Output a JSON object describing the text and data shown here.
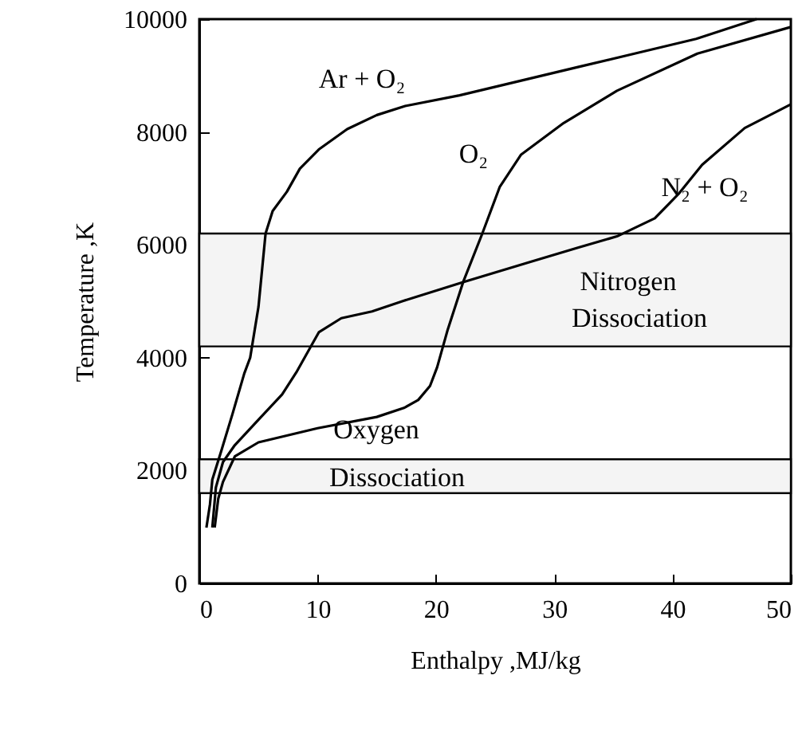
{
  "chart_data": {
    "type": "line",
    "xlabel": "Enthalpy ,MJ/kg",
    "ylabel": "Temperature ,K",
    "xlim": [
      0,
      50
    ],
    "ylim": [
      0,
      10000
    ],
    "xticks": [
      0,
      10,
      20,
      30,
      40,
      50
    ],
    "yticks": [
      0,
      2000,
      4000,
      6000,
      8000,
      10000
    ],
    "grid": false,
    "line_style": "solid",
    "series": [
      {
        "color": "#000000",
        "x": [
          0.6,
          0.9,
          1.1,
          1.8,
          2.8,
          3.8,
          4.3,
          5.0,
          5.6,
          6.2,
          7.4,
          8.5,
          10.1,
          12.5,
          15,
          17.4,
          22,
          27,
          32,
          37,
          42,
          47.1
        ],
        "values": [
          990,
          1400,
          1840,
          2310,
          3000,
          3720,
          4000,
          4900,
          6200,
          6600,
          6940,
          7350,
          7690,
          8050,
          8300,
          8460,
          8650,
          8900,
          9150,
          9400,
          9650,
          10000
        ]
      },
      {
        "color": "#000000",
        "x": [
          1.1,
          1.4,
          2,
          3,
          5,
          7,
          8.2,
          9.7,
          10.1,
          12,
          14.6,
          17.3,
          22.3,
          28,
          32,
          35.3,
          38.5,
          40.5,
          42.5,
          46.1,
          50
        ],
        "values": [
          990,
          1700,
          2150,
          2450,
          2900,
          3350,
          3740,
          4300,
          4450,
          4700,
          4820,
          5010,
          5340,
          5700,
          5950,
          6150,
          6470,
          6900,
          7420,
          8070,
          8490
        ]
      },
      {
        "color": "#000000",
        "x": [
          1.3,
          1.6,
          2,
          3,
          5,
          10,
          15,
          17.3,
          18.5,
          19.5,
          20.1,
          21,
          22.3,
          23.9,
          25.4,
          27.2,
          30.8,
          35.3,
          42.1,
          50
        ],
        "values": [
          990,
          1500,
          1800,
          2250,
          2500,
          2750,
          2950,
          3110,
          3250,
          3500,
          3830,
          4500,
          5340,
          6190,
          7030,
          7600,
          8160,
          8730,
          9390,
          9860
        ]
      }
    ],
    "bands": [
      {
        "axis": "y",
        "from": 4200,
        "to": 6200
      },
      {
        "axis": "y",
        "from": 1600,
        "to": 2200
      }
    ],
    "annotations": [
      "Ar + O₂",
      "O₂",
      "N₂ + O₂",
      "Nitrogen",
      "Dissociation",
      "Oxygen",
      "Dissociation"
    ]
  }
}
